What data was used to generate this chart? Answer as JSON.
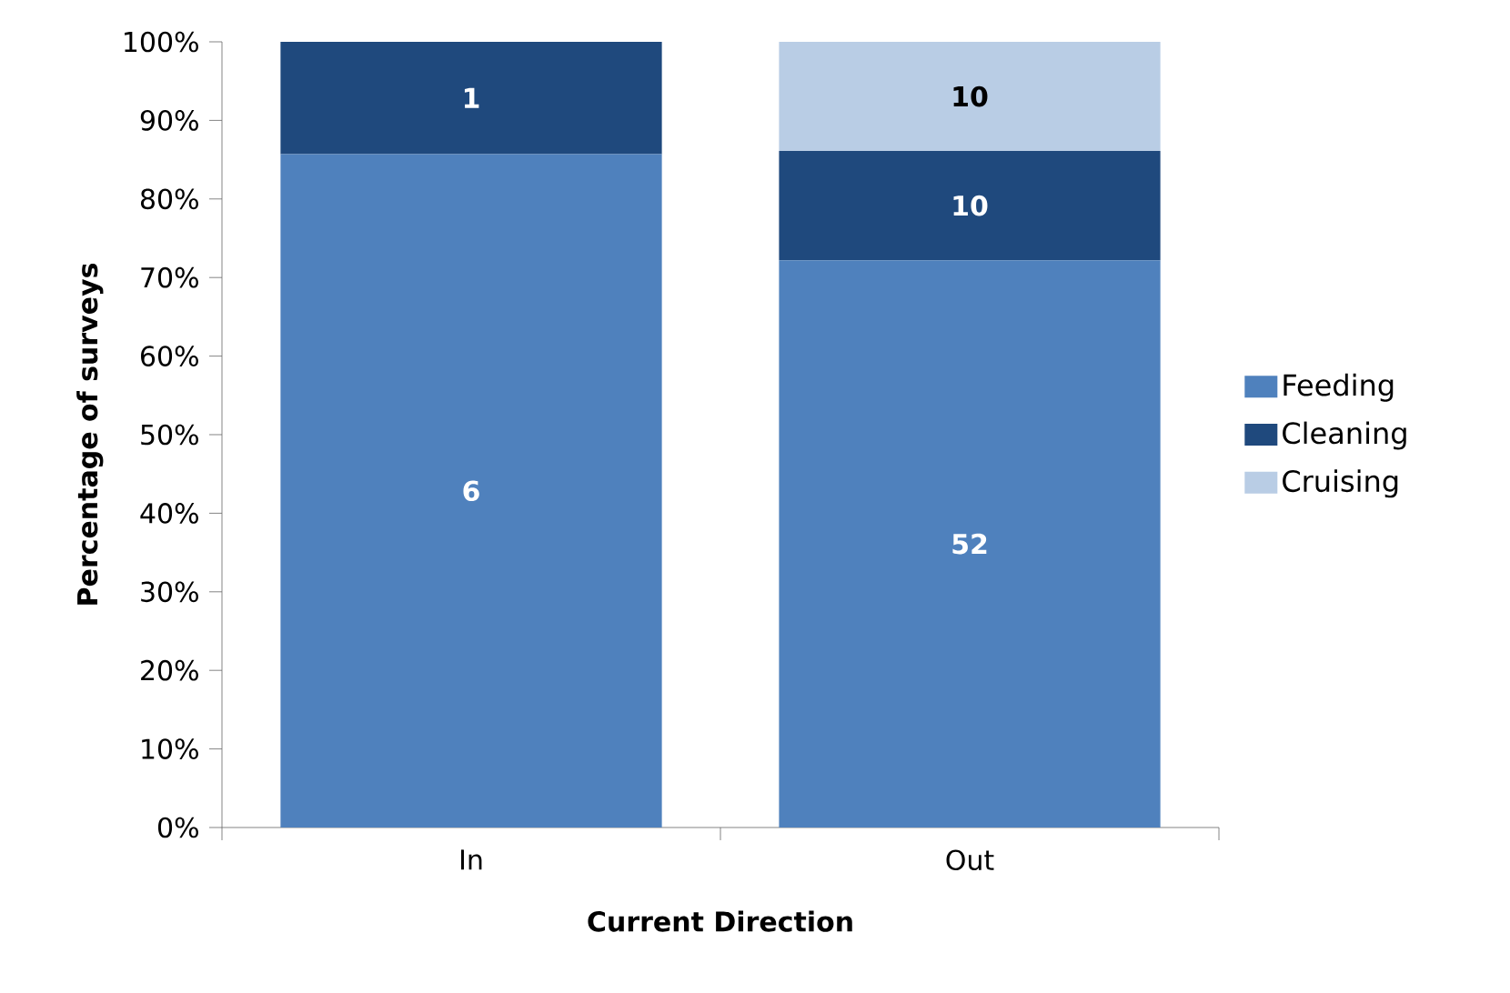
{
  "chart_data": {
    "type": "bar",
    "stacked": true,
    "xlabel": "Current Direction",
    "ylabel": "Percentage of surveys",
    "categories": [
      "In",
      "Out"
    ],
    "series": [
      {
        "name": "Feeding",
        "color": "#4f81bd",
        "values": [
          85.7,
          72.2
        ]
      },
      {
        "name": "Cleaning",
        "color": "#1f497d",
        "values": [
          14.3,
          13.9
        ]
      },
      {
        "name": "Cruising",
        "color": "#b9cde5",
        "values": [
          0,
          13.9
        ]
      }
    ],
    "annotations": [
      "6",
      "52",
      "1",
      "10",
      "10"
    ],
    "ylim": [
      0,
      100
    ],
    "yticks": [
      {
        "value": 0,
        "label": "0%"
      },
      {
        "value": 10,
        "label": "10%"
      },
      {
        "value": 20,
        "label": "20%"
      },
      {
        "value": 30,
        "label": "30%"
      },
      {
        "value": 40,
        "label": "40%"
      },
      {
        "value": 50,
        "label": "50%"
      },
      {
        "value": 60,
        "label": "60%"
      },
      {
        "value": 70,
        "label": "70%"
      },
      {
        "value": 80,
        "label": "80%"
      },
      {
        "value": 90,
        "label": "90%"
      },
      {
        "value": 100,
        "label": "100%"
      }
    ],
    "legend": "right"
  }
}
